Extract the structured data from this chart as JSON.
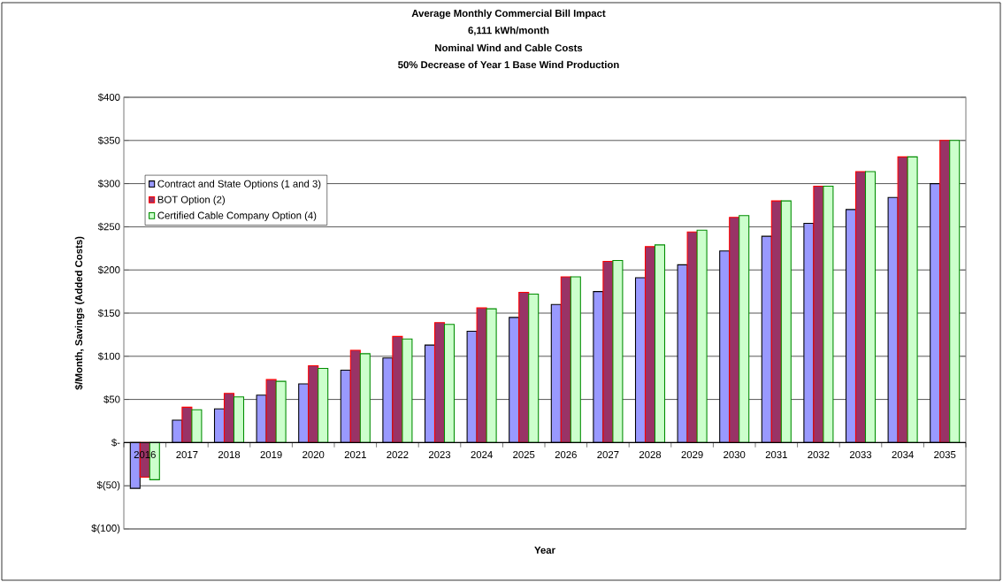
{
  "chart_data": {
    "type": "bar",
    "title": "Average Monthly Commercial Bill Impact",
    "subtitle": "6,111 kWh/month",
    "annotations": [
      "Nominal Wind and Cable Costs",
      "50% Decrease of Year 1 Base Wind Production"
    ],
    "xlabel": "Year",
    "ylabel": "$/Month, Savings (Added Costs)",
    "categories": [
      "2016",
      "2017",
      "2018",
      "2019",
      "2020",
      "2021",
      "2022",
      "2023",
      "2024",
      "2025",
      "2026",
      "2027",
      "2028",
      "2029",
      "2030",
      "2031",
      "2032",
      "2033",
      "2034",
      "2035"
    ],
    "series": [
      {
        "name": "Contract and State Options (1 and 3)",
        "color": "#9999ff",
        "values": [
          -53,
          26,
          39,
          55,
          68,
          84,
          98,
          113,
          129,
          145,
          160,
          175,
          191,
          206,
          222,
          239,
          254,
          270,
          284,
          300
        ]
      },
      {
        "name": "BOT Option (2)",
        "color": "#993366",
        "values": [
          -40,
          41,
          57,
          73,
          89,
          107,
          123,
          139,
          156,
          174,
          192,
          210,
          227,
          244,
          261,
          280,
          297,
          314,
          331,
          350
        ]
      },
      {
        "name": "Certified Cable Company Option (4)",
        "color": "#ccffcc",
        "values": [
          -43,
          38,
          53,
          71,
          86,
          103,
          120,
          137,
          155,
          172,
          192,
          211,
          229,
          246,
          263,
          280,
          297,
          314,
          331,
          350
        ]
      }
    ],
    "ylim": [
      -100,
      400
    ],
    "yticks": [
      {
        "value": -100,
        "label": "$(100)"
      },
      {
        "value": -50,
        "label": "$(50)"
      },
      {
        "value": 0,
        "label": "$-"
      },
      {
        "value": 50,
        "label": "$50"
      },
      {
        "value": 100,
        "label": "$100"
      },
      {
        "value": 150,
        "label": "$150"
      },
      {
        "value": 200,
        "label": "$200"
      },
      {
        "value": 250,
        "label": "$250"
      },
      {
        "value": 300,
        "label": "$300"
      },
      {
        "value": 350,
        "label": "$350"
      },
      {
        "value": 400,
        "label": "$400"
      }
    ],
    "grid": "y",
    "legend": "top left"
  }
}
